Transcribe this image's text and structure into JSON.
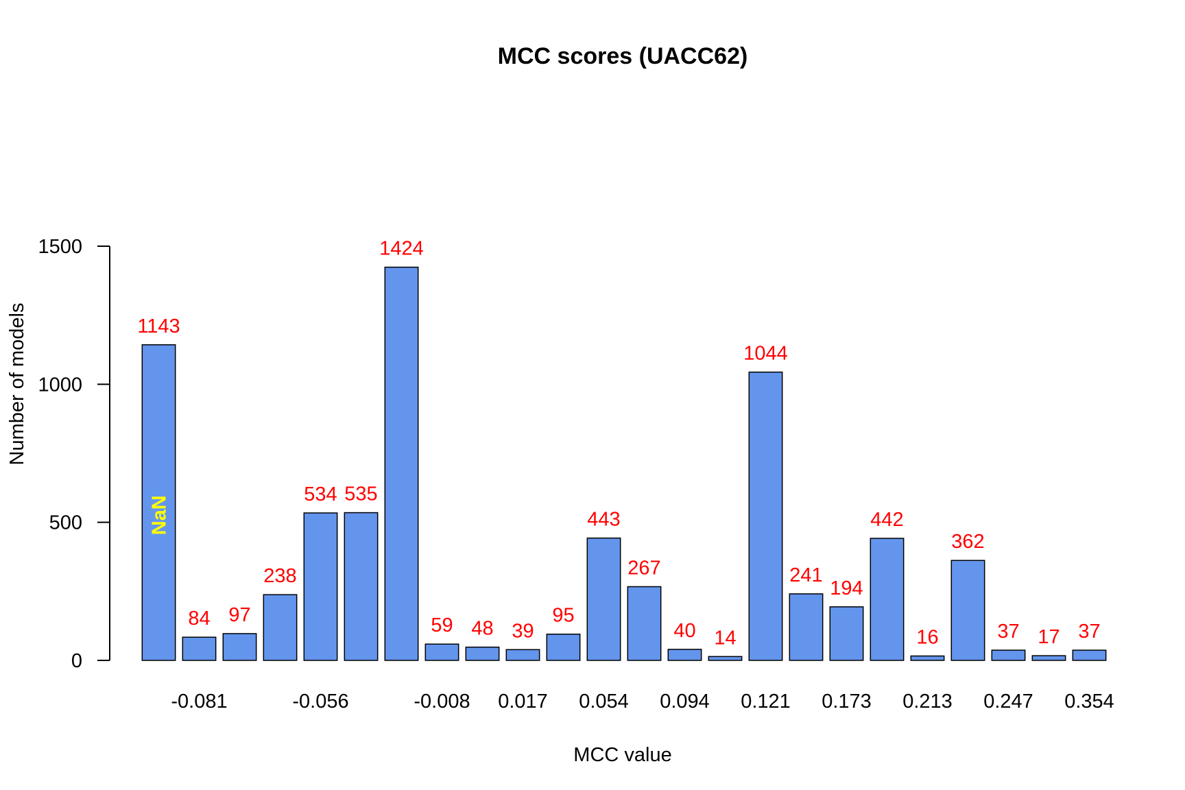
{
  "chart_data": {
    "type": "bar",
    "title": "MCC scores (UACC62)",
    "xlabel": "MCC value",
    "ylabel": "Number of models",
    "ylim": [
      0,
      1500
    ],
    "yticks": [
      "0",
      "500",
      "1000",
      "1500"
    ],
    "categories": [
      "NaN",
      "-0.081",
      "",
      "",
      "-0.056",
      "",
      "",
      "-0.008",
      "",
      "0.017",
      "",
      "0.054",
      "",
      "0.094",
      "",
      "0.121",
      "",
      "0.173",
      "",
      "0.213",
      "",
      "0.247",
      "",
      "0.354"
    ],
    "xtick_labels": [
      {
        "bar_index": 1,
        "label": "-0.081"
      },
      {
        "bar_index": 4,
        "label": "-0.056"
      },
      {
        "bar_index": 7,
        "label": "-0.008"
      },
      {
        "bar_index": 9,
        "label": "0.017"
      },
      {
        "bar_index": 11,
        "label": "0.054"
      },
      {
        "bar_index": 13,
        "label": "0.094"
      },
      {
        "bar_index": 15,
        "label": "0.121"
      },
      {
        "bar_index": 17,
        "label": "0.173"
      },
      {
        "bar_index": 19,
        "label": "0.213"
      },
      {
        "bar_index": 21,
        "label": "0.247"
      },
      {
        "bar_index": 23,
        "label": "0.354"
      }
    ],
    "values": [
      1143,
      84,
      97,
      238,
      534,
      535,
      1424,
      59,
      48,
      39,
      95,
      443,
      267,
      40,
      14,
      1044,
      241,
      194,
      442,
      16,
      362,
      37,
      17,
      37
    ],
    "data_labels": [
      "1143",
      "84",
      "97",
      "238",
      "534",
      "535",
      "1424",
      "59",
      "48",
      "39",
      "95",
      "443",
      "267",
      "40",
      "14",
      "1044",
      "241",
      "194",
      "442",
      "16",
      "362",
      "37",
      "17",
      "37"
    ],
    "nan_bar_label": "NaN",
    "grid": false,
    "legend": "none",
    "colors": {
      "bar_fill": "#6495ED",
      "bar_stroke": "#000000",
      "data_label": "#FF0000",
      "nan_label": "#FFFF00",
      "axis": "#000000"
    }
  }
}
